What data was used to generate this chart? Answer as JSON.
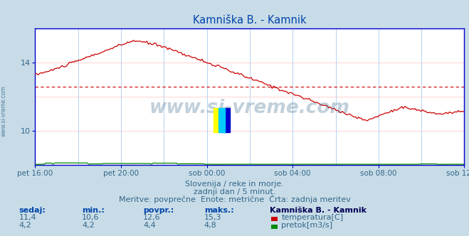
{
  "title": "Kamniška B. - Kamnik",
  "fig_bg_color": "#c8dce8",
  "plot_bg_color": "#ffffff",
  "grid_color_h": "#ffcccc",
  "grid_color_v": "#aaccee",
  "temp_color": "#cc0000",
  "flow_color": "#008800",
  "avg_line_color": "#cc0000",
  "border_color": "#0000cc",
  "x_tick_labels": [
    "pet 16:00",
    "pet 20:00",
    "sob 00:00",
    "sob 04:00",
    "sob 08:00",
    "sob 12:00"
  ],
  "x_tick_positions": [
    0,
    48,
    96,
    144,
    192,
    240
  ],
  "n_points": 289,
  "temp_min": 10.6,
  "temp_max": 15.3,
  "temp_avg": 12.6,
  "temp_now": 11.4,
  "flow_min": 4.2,
  "flow_max": 4.8,
  "flow_avg": 4.4,
  "flow_now": 4.2,
  "ylim_temp": [
    8.0,
    16.0
  ],
  "y_ticks": [
    10,
    14
  ],
  "subtitle1": "Slovenija / reke in morje.",
  "subtitle2": "zadnji dan / 5 minut.",
  "subtitle3": "Meritve: povprečne  Enote: metrične  Črta: zadnja meritev",
  "watermark": "www.si-vreme.com",
  "legend_title": "Kamniška B. - Kamnik",
  "footer_cols": [
    "sedaj:",
    "min.:",
    "povpr.:",
    "maks.:"
  ],
  "footer_row1": [
    "11,4",
    "10,6",
    "12,6",
    "15,3"
  ],
  "footer_row2": [
    "4,2",
    "4,2",
    "4,4",
    "4,8"
  ],
  "text_color": "#336688",
  "title_color": "#0044aa",
  "label_color": "#0044aa",
  "logo_yellow": "#ffff00",
  "logo_blue": "#0000cc",
  "logo_cyan": "#00ccff"
}
